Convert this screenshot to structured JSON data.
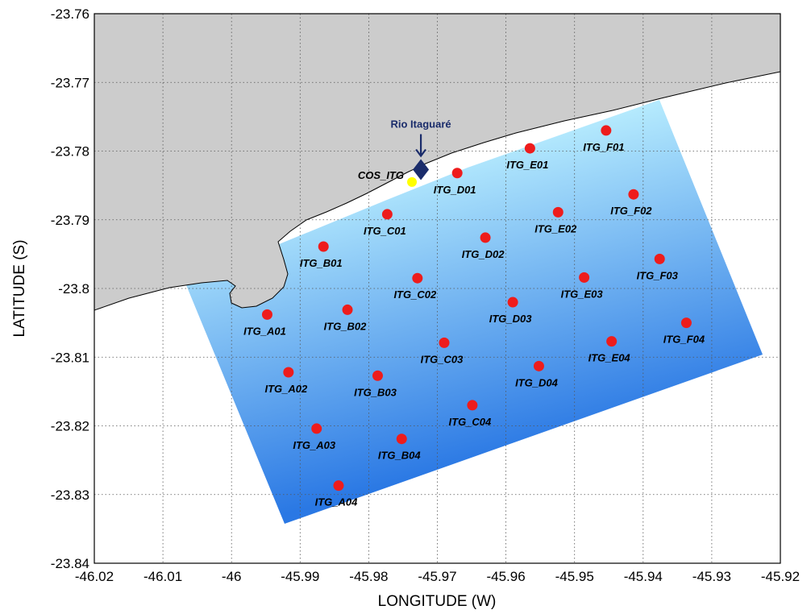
{
  "chart_data": {
    "type": "scatter",
    "xlabel": "LONGITUDE (W)",
    "ylabel": "LATITUDE (S)",
    "xlim": [
      -46.02,
      -45.92
    ],
    "ylim": [
      -23.84,
      -23.76
    ],
    "xticks": [
      "-46.02",
      "-46.01",
      "-46",
      "-45.99",
      "-45.98",
      "-45.97",
      "-45.96",
      "-45.95",
      "-45.94",
      "-45.93",
      "-45.92"
    ],
    "yticks": [
      "-23.76",
      "-23.77",
      "-23.78",
      "-23.79",
      "-23.8",
      "-23.81",
      "-23.82",
      "-23.83",
      "-23.84"
    ],
    "grid": true,
    "colors": {
      "land": "#cccccc",
      "station": "#ee1c1c",
      "reference_station": "#ffff00",
      "river_marker": "#1a2c6b",
      "water_near": "#bdf1ff",
      "water_far": "#2a78e4"
    },
    "stations": [
      {
        "name": "ITG_A01",
        "lon": -45.9948,
        "lat": -23.8038
      },
      {
        "name": "ITG_A02",
        "lon": -45.9917,
        "lat": -23.8122
      },
      {
        "name": "ITG_A03",
        "lon": -45.9876,
        "lat": -23.8204
      },
      {
        "name": "ITG_A04",
        "lon": -45.9844,
        "lat": -23.8287
      },
      {
        "name": "ITG_B01",
        "lon": -45.9866,
        "lat": -23.7939
      },
      {
        "name": "ITG_B02",
        "lon": -45.9831,
        "lat": -23.8031
      },
      {
        "name": "ITG_B03",
        "lon": -45.9787,
        "lat": -23.8127
      },
      {
        "name": "ITG_B04",
        "lon": -45.9752,
        "lat": -23.8219
      },
      {
        "name": "ITG_C01",
        "lon": -45.9773,
        "lat": -23.7892
      },
      {
        "name": "ITG_C02",
        "lon": -45.9729,
        "lat": -23.7985
      },
      {
        "name": "ITG_C03",
        "lon": -45.969,
        "lat": -23.8079
      },
      {
        "name": "ITG_C04",
        "lon": -45.9649,
        "lat": -23.817
      },
      {
        "name": "ITG_D01",
        "lon": -45.9671,
        "lat": -23.7832
      },
      {
        "name": "ITG_D02",
        "lon": -45.963,
        "lat": -23.7926
      },
      {
        "name": "ITG_D03",
        "lon": -45.959,
        "lat": -23.802
      },
      {
        "name": "ITG_D04",
        "lon": -45.9552,
        "lat": -23.8113
      },
      {
        "name": "ITG_E01",
        "lon": -45.9565,
        "lat": -23.7796
      },
      {
        "name": "ITG_E02",
        "lon": -45.9524,
        "lat": -23.7889
      },
      {
        "name": "ITG_E03",
        "lon": -45.9486,
        "lat": -23.7984
      },
      {
        "name": "ITG_E04",
        "lon": -45.9446,
        "lat": -23.8077
      },
      {
        "name": "ITG_F01",
        "lon": -45.9454,
        "lat": -23.777
      },
      {
        "name": "ITG_F02",
        "lon": -45.9414,
        "lat": -23.7863
      },
      {
        "name": "ITG_F03",
        "lon": -45.9376,
        "lat": -23.7957
      },
      {
        "name": "ITG_F04",
        "lon": -45.9337,
        "lat": -23.805
      }
    ],
    "reference_station": {
      "name": "COS_ITG",
      "lon": -45.9737,
      "lat": -23.7845
    },
    "river": {
      "name": "Rio Itaguaré",
      "lon": -45.9724,
      "lat": -23.7827
    }
  }
}
